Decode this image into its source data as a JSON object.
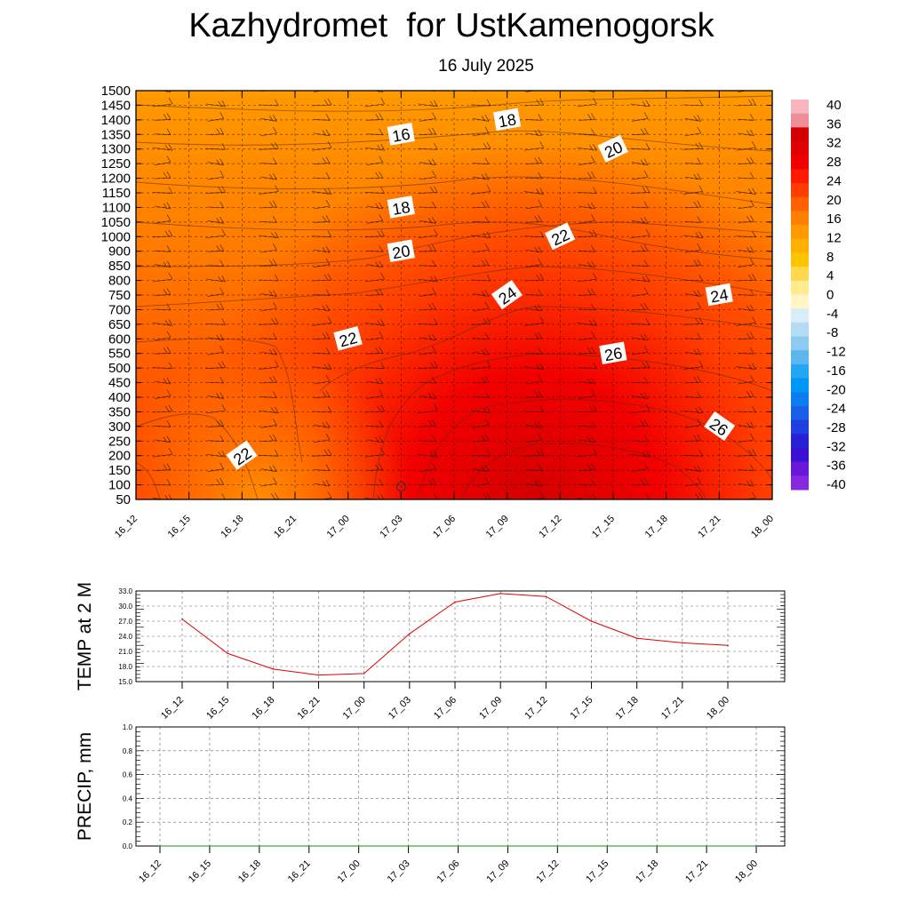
{
  "header": {
    "title": "Kazhydromet  for UstKamenogorsk",
    "date": "16 July 2025"
  },
  "chart_data": [
    {
      "type": "heatmap",
      "name": "vertical-profile",
      "x_categories": [
        "16_12",
        "16_15",
        "16_18",
        "16_21",
        "17_00",
        "17_03",
        "17_06",
        "17_09",
        "17_12",
        "17_15",
        "17_18",
        "17_21",
        "18_00"
      ],
      "y_levels": [
        50,
        100,
        150,
        200,
        250,
        300,
        350,
        400,
        450,
        500,
        550,
        600,
        650,
        700,
        750,
        800,
        850,
        900,
        1000,
        1050,
        1100,
        1150,
        1200,
        1250,
        1300,
        1350,
        1400,
        1450,
        1500
      ],
      "contour_labels": [
        {
          "text": "16",
          "x": "17_03",
          "y": 1350
        },
        {
          "text": "18",
          "x": "17_09",
          "y": 1400
        },
        {
          "text": "20",
          "x": "17_15",
          "y": 1300
        },
        {
          "text": "18",
          "x": "17_03",
          "y": 1100
        },
        {
          "text": "22",
          "x": "17_12",
          "y": 1000
        },
        {
          "text": "20",
          "x": "17_03",
          "y": 900
        },
        {
          "text": "24",
          "x": "17_09",
          "y": 750
        },
        {
          "text": "24",
          "x": "17_21",
          "y": 750
        },
        {
          "text": "22",
          "x": "17_00",
          "y": 600
        },
        {
          "text": "26",
          "x": "17_15",
          "y": 550
        },
        {
          "text": "26",
          "x": "17_21",
          "y": 300
        },
        {
          "text": "22",
          "x": "16_18",
          "y": 200
        }
      ],
      "colorbar": {
        "labels": [
          "40",
          "36",
          "32",
          "28",
          "24",
          "20",
          "16",
          "12",
          "8",
          "4",
          "0",
          "-4",
          "-8",
          "-12",
          "-16",
          "-20",
          "-24",
          "-28",
          "-32",
          "-36",
          "-40"
        ],
        "colors": [
          "#f8b4bf",
          "#ee8e96",
          "#d40000",
          "#e00000",
          "#f20000",
          "#ff1a00",
          "#ff3d00",
          "#ff6000",
          "#ff7f00",
          "#ff9a00",
          "#ffb100",
          "#ffc400",
          "#ffd84d",
          "#ffec8f",
          "#fff5c7",
          "#d9ecf7",
          "#b4dcf2",
          "#8ccbef",
          "#5cb6ef",
          "#24a6f4",
          "#0096f5",
          "#0a7ef0",
          "#1a5fe8",
          "#1e40e0",
          "#2620d6",
          "#3b10d0",
          "#6a18d8",
          "#8a28e0"
        ]
      },
      "field_colors": {
        "cool": "#ff9a00",
        "mid": "#ff5a00",
        "hot": "#e60000"
      }
    },
    {
      "type": "line",
      "name": "temperature-2m",
      "ylabel": "TEMP at 2 M",
      "categories": [
        "16_12",
        "16_15",
        "16_18",
        "16_21",
        "17_00",
        "17_03",
        "17_06",
        "17_09",
        "17_12",
        "17_15",
        "17_18",
        "17_21",
        "18_00"
      ],
      "yticks": [
        "33.0",
        "30.0",
        "27.0",
        "24.0",
        "21.0",
        "18.0",
        "15.0"
      ],
      "ylim": [
        15,
        33
      ],
      "values": [
        27.4,
        20.6,
        17.5,
        16.3,
        16.6,
        24.5,
        30.8,
        32.5,
        31.9,
        27.0,
        23.6,
        22.7,
        22.2
      ],
      "color": "#e00000"
    },
    {
      "type": "line",
      "name": "precipitation",
      "ylabel": "PRECIP, mm",
      "categories": [
        "16_12",
        "16_15",
        "16_18",
        "16_21",
        "17_00",
        "17_03",
        "17_06",
        "17_09",
        "17_12",
        "17_15",
        "17_18",
        "17_21",
        "18_00"
      ],
      "yticks": [
        "1.0",
        "0.8",
        "0.6",
        "0.4",
        "0.2",
        "0.0"
      ],
      "ylim": [
        0,
        1
      ],
      "values": [
        0,
        0,
        0,
        0,
        0,
        0,
        0,
        0,
        0,
        0,
        0,
        0,
        0
      ],
      "color": "#1a8a1a"
    }
  ]
}
